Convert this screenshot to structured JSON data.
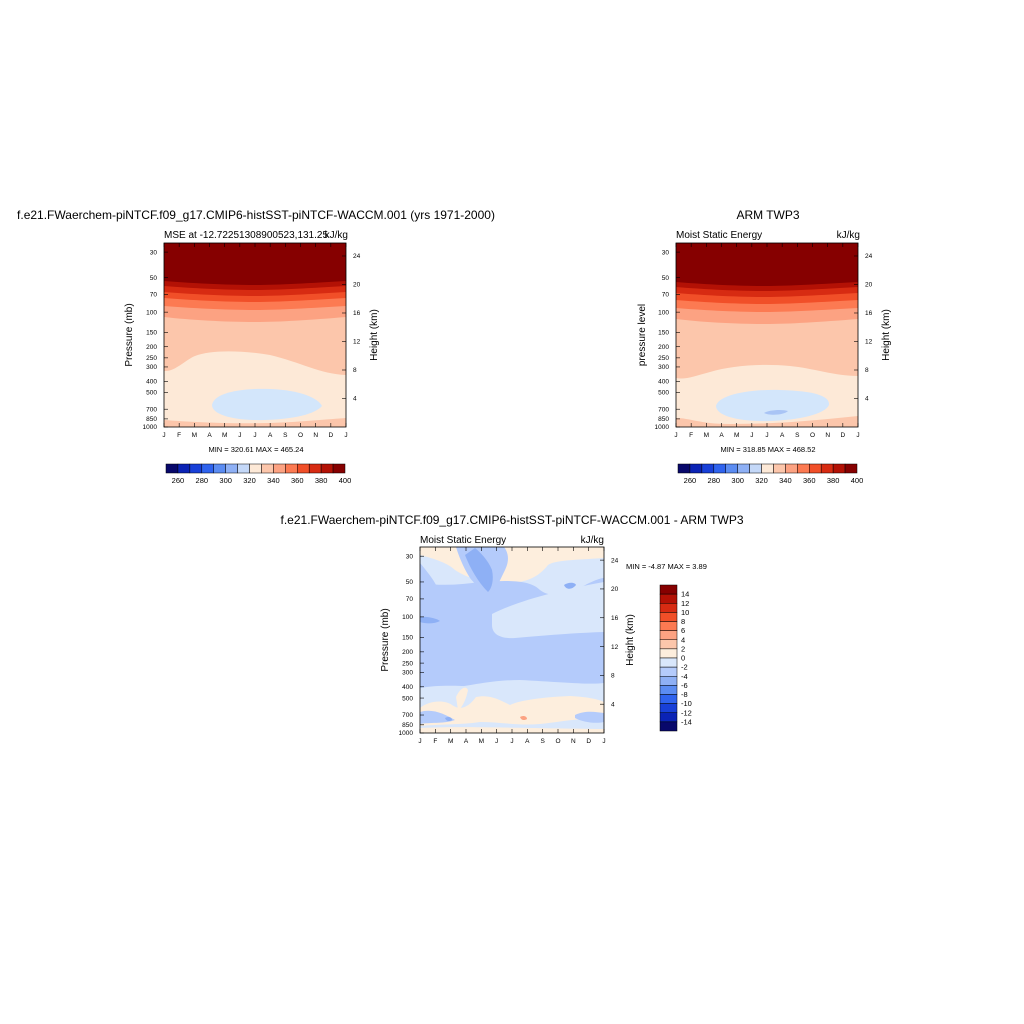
{
  "panels": [
    {
      "title": "f.e21.FWaerchem-piNTCF.f09_g17.CMIP6-histSST-piNTCF-WACCM.001 (yrs 1971-2000)",
      "subtitle_left": "MSE at -12.72251308900523,131.25",
      "subtitle_right": "kJ/kg",
      "ylabel": "Pressure (mb)",
      "y2label": "Height (km)",
      "minmax": "MIN = 320.61 MAX = 465.24"
    },
    {
      "title": "ARM TWP3",
      "subtitle_left": "Moist Static Energy",
      "subtitle_right": "kJ/kg",
      "ylabel": "pressure level",
      "y2label": "Height (km)",
      "minmax": "MIN = 318.85 MAX = 468.52"
    },
    {
      "title": "f.e21.FWaerchem-piNTCF.f09_g17.CMIP6-histSST-piNTCF-WACCM.001 - ARM TWP3",
      "subtitle_left": "Moist Static Energy",
      "subtitle_right": "kJ/kg",
      "ylabel": "Pressure (mb)",
      "y2label": "Height (km)",
      "minmax": "MIN =  -4.87 MAX =   3.89"
    }
  ],
  "colors": {
    "mse": [
      "#08086b",
      "#0b23b5",
      "#1840d8",
      "#2f63ee",
      "#5b8cf2",
      "#8eb0f5",
      "#c4d8f8",
      "#fde9d7",
      "#fcc6ab",
      "#fca282",
      "#fc7a52",
      "#f14f28",
      "#d72b12",
      "#b31105",
      "#860000"
    ],
    "diff": [
      "#08086b",
      "#0b23b5",
      "#1840d8",
      "#2f63ee",
      "#5b8cf2",
      "#8eb0f5",
      "#b4cbfb",
      "#d9e7fb",
      "#fdeedd",
      "#fcc6ab",
      "#fca282",
      "#fc7a52",
      "#f14f28",
      "#d72b12",
      "#b31105",
      "#860000"
    ]
  },
  "chart_data": [
    {
      "type": "heatmap",
      "title": "f.e21.FWaerchem-piNTCF.f09_g17.CMIP6-histSST-piNTCF-WACCM.001 (yrs 1971-2000)",
      "variable": "MSE at -12.72251308900523,131.25",
      "units": "kJ/kg",
      "x_ticks": [
        "J",
        "F",
        "M",
        "A",
        "M",
        "J",
        "J",
        "A",
        "S",
        "O",
        "N",
        "D",
        "J"
      ],
      "y_ticks": [
        30,
        50,
        70,
        100,
        150,
        200,
        250,
        300,
        400,
        500,
        700,
        850,
        1000
      ],
      "y2_ticks": [
        4,
        8,
        12,
        16,
        20,
        24
      ],
      "ylabel": "Pressure (mb)",
      "y2label": "Height (km)",
      "min": 320.61,
      "max": 465.24,
      "colorbar_ticks": [
        260,
        280,
        300,
        320,
        340,
        360,
        380,
        400
      ],
      "approx_field": {
        "levels_mb": [
          1000,
          850,
          700,
          500,
          300,
          200,
          100,
          70,
          50,
          30
        ],
        "mse_kJkg_annual": [
          345,
          335,
          325,
          322,
          345,
          355,
          365,
          380,
          395,
          420
        ]
      }
    },
    {
      "type": "heatmap",
      "title": "ARM TWP3",
      "variable": "Moist Static Energy",
      "units": "kJ/kg",
      "x_ticks": [
        "J",
        "F",
        "M",
        "A",
        "M",
        "J",
        "J",
        "A",
        "S",
        "O",
        "N",
        "D",
        "J"
      ],
      "y_ticks": [
        30,
        50,
        70,
        100,
        150,
        200,
        250,
        300,
        400,
        500,
        700,
        850,
        1000
      ],
      "y2_ticks": [
        4,
        8,
        12,
        16,
        20,
        24
      ],
      "ylabel": "pressure level",
      "y2label": "Height (km)",
      "min": 318.85,
      "max": 468.52,
      "colorbar_ticks": [
        260,
        280,
        300,
        320,
        340,
        360,
        380,
        400
      ],
      "approx_field": {
        "levels_mb": [
          1000,
          850,
          700,
          500,
          300,
          200,
          100,
          70,
          50,
          30
        ],
        "mse_kJkg_annual": [
          346,
          335,
          324,
          322,
          345,
          355,
          366,
          381,
          396,
          422
        ]
      }
    },
    {
      "type": "heatmap",
      "title": "f.e21.FWaerchem-piNTCF.f09_g17.CMIP6-histSST-piNTCF-WACCM.001 - ARM TWP3",
      "variable": "Moist Static Energy",
      "units": "kJ/kg",
      "x_ticks": [
        "J",
        "F",
        "M",
        "A",
        "M",
        "J",
        "J",
        "A",
        "S",
        "O",
        "N",
        "D",
        "J"
      ],
      "y_ticks": [
        30,
        50,
        70,
        100,
        150,
        200,
        250,
        300,
        400,
        500,
        700,
        850,
        1000
      ],
      "y2_ticks": [
        4,
        8,
        12,
        16,
        20,
        24
      ],
      "ylabel": "Pressure (mb)",
      "y2label": "Height (km)",
      "min": -4.87,
      "max": 3.89,
      "colorbar_ticks": [
        14,
        12,
        10,
        8,
        6,
        4,
        2,
        0,
        -2,
        -4,
        -6,
        -8,
        -10,
        -12,
        -14
      ]
    }
  ]
}
